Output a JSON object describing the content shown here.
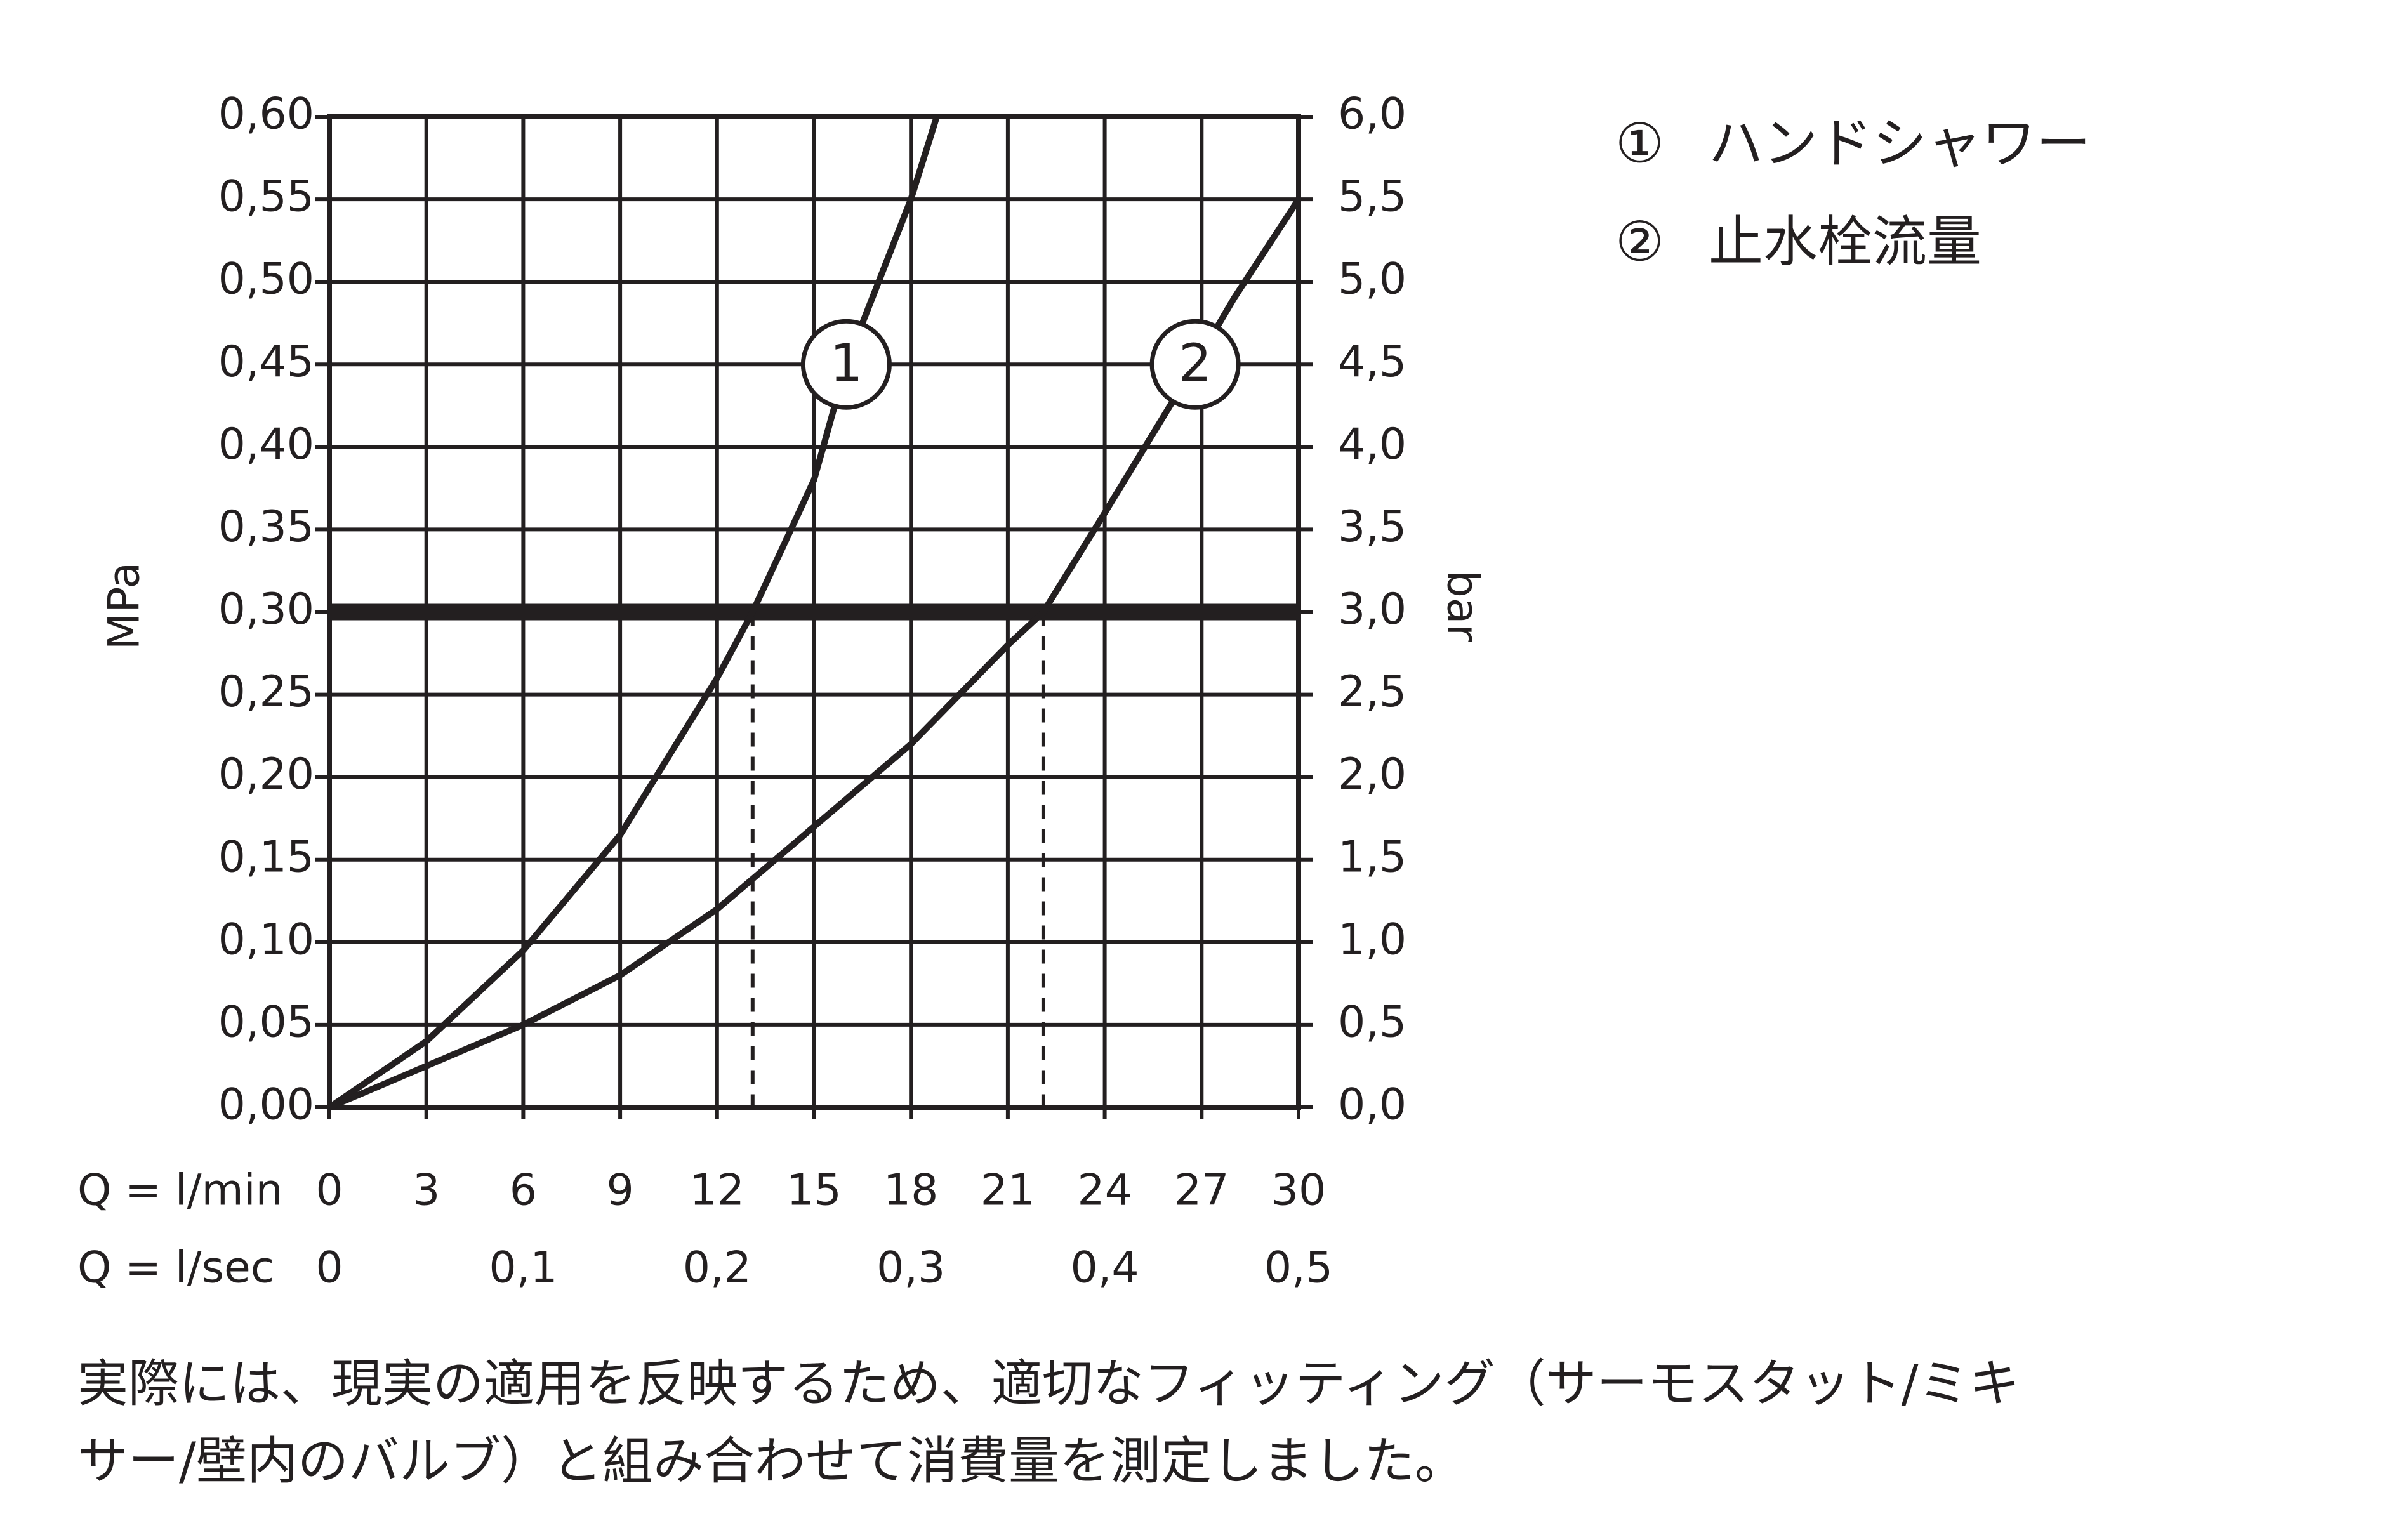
{
  "chart_data": {
    "type": "line",
    "y_label": "MPa",
    "y2_label": "bar",
    "x_label": "Q = l/min",
    "x2_label": "Q = l/sec",
    "xlim": [
      0,
      30
    ],
    "xticks": [
      0,
      3,
      6,
      9,
      12,
      15,
      18,
      21,
      24,
      27,
      30
    ],
    "x2lim": [
      0,
      0.5
    ],
    "x2ticks": [
      0,
      {
        "value": 0.1,
        "label": "0,1"
      },
      {
        "value": 0.2,
        "label": "0,2"
      },
      {
        "value": 0.3,
        "label": "0,3"
      },
      {
        "value": 0.4,
        "label": "0,4"
      },
      {
        "value": 0.5,
        "label": "0,5"
      }
    ],
    "ylim": [
      0,
      0.6
    ],
    "yticks": [
      {
        "value": 0,
        "label": "0,00"
      },
      {
        "value": 0.05,
        "label": "0,05"
      },
      {
        "value": 0.1,
        "label": "0,10"
      },
      {
        "value": 0.15,
        "label": "0,15"
      },
      {
        "value": 0.2,
        "label": "0,20"
      },
      {
        "value": 0.25,
        "label": "0,25"
      },
      {
        "value": 0.3,
        "label": "0,30"
      },
      {
        "value": 0.35,
        "label": "0,35"
      },
      {
        "value": 0.4,
        "label": "0,40"
      },
      {
        "value": 0.45,
        "label": "0,45"
      },
      {
        "value": 0.5,
        "label": "0,50"
      },
      {
        "value": 0.55,
        "label": "0,55"
      },
      {
        "value": 0.6,
        "label": "0,60"
      }
    ],
    "y2lim": [
      0,
      6
    ],
    "y2ticks": [
      {
        "value": 0,
        "label": "0,0"
      },
      {
        "value": 0.5,
        "label": "0,5"
      },
      {
        "value": 1,
        "label": "1,0"
      },
      {
        "value": 1.5,
        "label": "1,5"
      },
      {
        "value": 2,
        "label": "2,0"
      },
      {
        "value": 2.5,
        "label": "2,5"
      },
      {
        "value": 3,
        "label": "3,0"
      },
      {
        "value": 3.5,
        "label": "3,5"
      },
      {
        "value": 4,
        "label": "4,0"
      },
      {
        "value": 4.5,
        "label": "4,5"
      },
      {
        "value": 5,
        "label": "5,0"
      },
      {
        "value": 5.5,
        "label": "5,5"
      },
      {
        "value": 6,
        "label": "6,0"
      }
    ],
    "grid": true,
    "reference_pressure": 0.3,
    "reference_flows": [
      13.1,
      22.1
    ],
    "series": [
      {
        "name": "ハンドシャワー",
        "marker": "①",
        "label": "1",
        "color": "#231f20",
        "x": [
          0,
          3,
          6,
          9,
          12,
          13.1,
          15,
          16,
          18,
          18.8
        ],
        "values": [
          0,
          0.04,
          0.095,
          0.165,
          0.26,
          0.3,
          0.38,
          0.45,
          0.55,
          0.6
        ]
      },
      {
        "name": "止水栓流量",
        "marker": "②",
        "label": "2",
        "color": "#231f20",
        "x": [
          0,
          6,
          9,
          12,
          15,
          18,
          21,
          22.1,
          24,
          26.8,
          28,
          30
        ],
        "values": [
          0,
          0.05,
          0.08,
          0.12,
          0.17,
          0.22,
          0.28,
          0.3,
          0.36,
          0.45,
          0.49,
          0.55
        ]
      }
    ],
    "note": [
      "実際には、現実の適用を反映するため、適切なフィッティング（サーモスタット/ミキ",
      "サー/壁内のバルブ）と組み合わせて消費量を測定しました。"
    ]
  }
}
